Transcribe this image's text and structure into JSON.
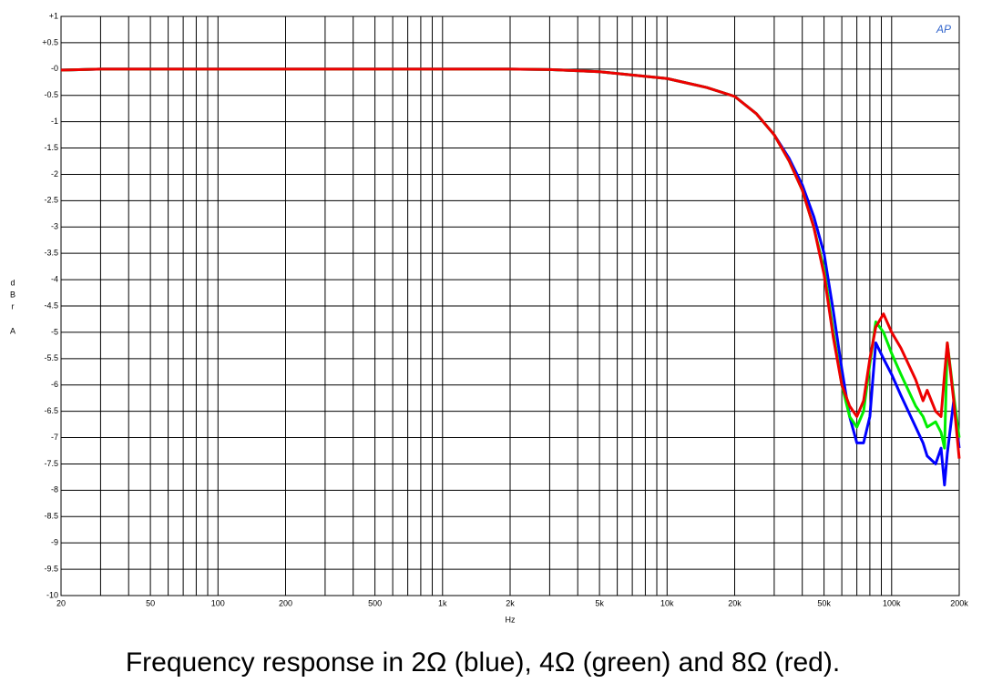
{
  "chart_data": {
    "type": "line",
    "caption": "Frequency response in 2Ω (blue), 4Ω (green) and 8Ω (red).",
    "x_label": "Hz",
    "y_label": [
      "d",
      "B",
      "r",
      "A"
    ],
    "logo": "AP",
    "xlog": true,
    "grid": true,
    "xlim": [
      20,
      200000
    ],
    "ylim": [
      -10,
      1
    ],
    "xticks": [
      20,
      50,
      100,
      200,
      500,
      {
        "value": 1000,
        "label": "1k"
      },
      {
        "value": 2000,
        "label": "2k"
      },
      {
        "value": 5000,
        "label": "5k"
      },
      {
        "value": 10000,
        "label": "10k"
      },
      {
        "value": 20000,
        "label": "20k"
      },
      {
        "value": 50000,
        "label": "50k"
      },
      {
        "value": 100000,
        "label": "100k"
      },
      {
        "value": 200000,
        "label": "200k"
      }
    ],
    "xminor_ticks": [
      30,
      40,
      60,
      70,
      80,
      90,
      300,
      400,
      600,
      700,
      800,
      900,
      3000,
      4000,
      6000,
      7000,
      8000,
      9000,
      30000,
      40000,
      60000,
      70000,
      80000,
      90000
    ],
    "yticks": [
      {
        "value": 1,
        "label": "+1"
      },
      {
        "value": 0.5,
        "label": "+0.5"
      },
      {
        "value": 0,
        "label": "-0"
      },
      -0.5,
      -1,
      -1.5,
      -2,
      -2.5,
      -3,
      -3.5,
      -4,
      -4.5,
      -5,
      -5.5,
      -6,
      -6.5,
      -7,
      -7.5,
      -8,
      -8.5,
      -9,
      -9.5,
      -10
    ],
    "x": [
      20,
      30,
      50,
      100,
      200,
      500,
      1000,
      2000,
      3000,
      5000,
      10000,
      15000,
      20000,
      25000,
      30000,
      35000,
      40000,
      45000,
      50000,
      55000,
      60000,
      65000,
      70000,
      75000,
      80000,
      85000,
      92000,
      100000,
      110000,
      128000,
      138000,
      144000,
      157000,
      166000,
      172000,
      177000,
      189000,
      200000
    ],
    "series": [
      {
        "name": "2Ω",
        "color": "#0000ff",
        "values": [
          -0.02,
          0,
          0,
          0,
          0,
          0,
          0,
          0,
          -0.01,
          -0.05,
          -0.18,
          -0.35,
          -0.52,
          -0.85,
          -1.25,
          -1.7,
          -2.2,
          -2.8,
          -3.5,
          -4.6,
          -5.7,
          -6.6,
          -7.1,
          -7.1,
          -6.6,
          -5.2,
          -5.5,
          -5.8,
          -6.2,
          -6.8,
          -7.1,
          -7.35,
          -7.5,
          -7.2,
          -7.9,
          -7.3,
          -6.3,
          -7.2
        ]
      },
      {
        "name": "4Ω",
        "color": "#00ee00",
        "values": [
          -0.02,
          0,
          0,
          0,
          0,
          0,
          0,
          0,
          -0.01,
          -0.05,
          -0.18,
          -0.35,
          -0.52,
          -0.85,
          -1.25,
          -1.75,
          -2.3,
          -3.0,
          -3.8,
          -5.0,
          -6.0,
          -6.6,
          -6.8,
          -6.5,
          -5.6,
          -4.8,
          -5.0,
          -5.4,
          -5.8,
          -6.4,
          -6.6,
          -6.8,
          -6.7,
          -6.9,
          -7.2,
          -5.2,
          -6.2,
          -7.0
        ]
      },
      {
        "name": "8Ω",
        "color": "#ee0000",
        "values": [
          -0.02,
          0,
          0,
          0,
          0,
          0,
          0,
          0,
          -0.01,
          -0.05,
          -0.18,
          -0.35,
          -0.52,
          -0.85,
          -1.25,
          -1.75,
          -2.3,
          -3.0,
          -3.9,
          -5.1,
          -6.0,
          -6.4,
          -6.6,
          -6.3,
          -5.5,
          -4.9,
          -4.65,
          -5.0,
          -5.3,
          -5.9,
          -6.3,
          -6.1,
          -6.5,
          -6.6,
          -5.8,
          -5.2,
          -6.3,
          -7.4
        ]
      }
    ]
  }
}
